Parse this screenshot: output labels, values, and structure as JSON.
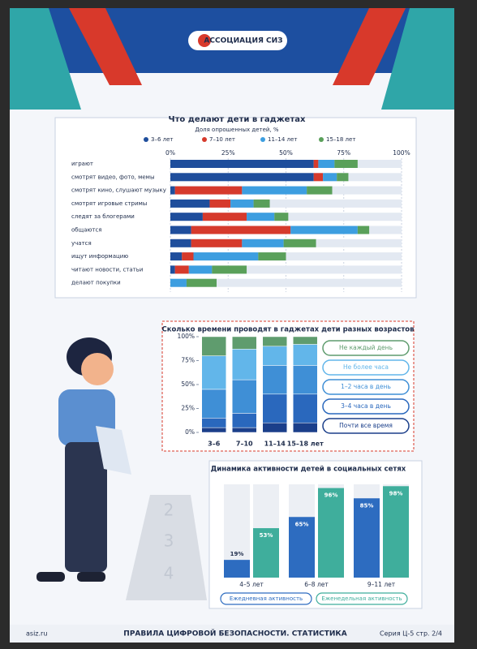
{
  "header": {
    "organization": "АССОЦИАЦИЯ СИЗ"
  },
  "footer": {
    "site": "asiz.ru",
    "title": "ПРАВИЛА ЦИФРОВОЙ БЕЗОПАСНОСТИ. СТАТИСТИКА",
    "series": "Серия Ц-5 стр. 2/4"
  },
  "decoration": {
    "pedestal_numbers": [
      "2",
      "3",
      "4"
    ]
  },
  "chart_data": [
    {
      "type": "bar",
      "orientation": "horizontal",
      "stacked": true,
      "title": "Что делают дети в гаджетах",
      "subtitle": "Доля опрошенных детей, %",
      "categories": [
        "играют",
        "смотрят видео, фото, мемы",
        "смотрят кино, слушают музыку",
        "смотрят игровые стримы",
        "следят за блогерами",
        "общаются",
        "учатся",
        "ищут информацию",
        "читают новости, статьи",
        "делают покупки"
      ],
      "series": [
        {
          "name": "3–6 лет",
          "color": "#1f4e9c",
          "values": [
            62,
            62,
            2,
            17,
            14,
            9,
            9,
            5,
            2,
            0
          ]
        },
        {
          "name": "7–10 лет",
          "color": "#d63a2c",
          "values": [
            2,
            4,
            29,
            9,
            19,
            43,
            22,
            5,
            6,
            0
          ]
        },
        {
          "name": "11–14 лет",
          "color": "#3d9ee0",
          "values": [
            7,
            6,
            28,
            10,
            12,
            29,
            18,
            28,
            10,
            7
          ]
        },
        {
          "name": "15–18 лет",
          "color": "#5aa05a",
          "values": [
            10,
            5,
            11,
            7,
            6,
            5,
            14,
            12,
            15,
            13
          ]
        }
      ],
      "xlim": [
        0,
        100
      ],
      "xticks": [
        {
          "value": 0,
          "label": "0%"
        },
        {
          "value": 25,
          "label": "25%"
        },
        {
          "value": 50,
          "label": "50%"
        },
        {
          "value": 75,
          "label": "75%"
        },
        {
          "value": 100,
          "label": "100%"
        }
      ],
      "grid": true
    },
    {
      "type": "bar",
      "orientation": "vertical",
      "stacked": true,
      "title": "Сколько времени проводят в гаджетах дети разных возрастов",
      "categories": [
        "3–6",
        "7–10",
        "11–14",
        "15–18 лет"
      ],
      "series": [
        {
          "name": "Не каждый день",
          "color": "#5f9c6e",
          "values": [
            20,
            13,
            10,
            8
          ]
        },
        {
          "name": "Не более часа",
          "color": "#62b6ea",
          "values": [
            35,
            32,
            20,
            22
          ]
        },
        {
          "name": "1–2 часа в день",
          "color": "#3f8fd6",
          "values": [
            30,
            35,
            30,
            30
          ]
        },
        {
          "name": "3–4 часа в день",
          "color": "#2a68bd",
          "values": [
            10,
            15,
            30,
            30
          ]
        },
        {
          "name": "Почти все время",
          "color": "#1b3f8a",
          "values": [
            5,
            5,
            10,
            10
          ]
        }
      ],
      "ylim": [
        0,
        100
      ],
      "yticks": [
        {
          "value": 0,
          "label": "0%"
        },
        {
          "value": 25,
          "label": "25%"
        },
        {
          "value": 50,
          "label": "50%"
        },
        {
          "value": 75,
          "label": "75%"
        },
        {
          "value": 100,
          "label": "100%"
        }
      ],
      "grid": false
    },
    {
      "type": "bar",
      "orientation": "vertical",
      "stacked": false,
      "title": "Динамика активности детей в социальных сетях",
      "categories": [
        "4–5 лет",
        "6–8 лет",
        "9–11 лет"
      ],
      "series": [
        {
          "name": "Ежедневная активность",
          "color": "#2d6cc0",
          "values": [
            19,
            65,
            85
          ],
          "value_labels": [
            "19%",
            "65%",
            "85%"
          ]
        },
        {
          "name": "Еженедельная активность",
          "color": "#3fae9c",
          "values": [
            53,
            96,
            98
          ],
          "value_labels": [
            "53%",
            "96%",
            "98%"
          ]
        }
      ],
      "ylim": [
        0,
        100
      ]
    }
  ]
}
